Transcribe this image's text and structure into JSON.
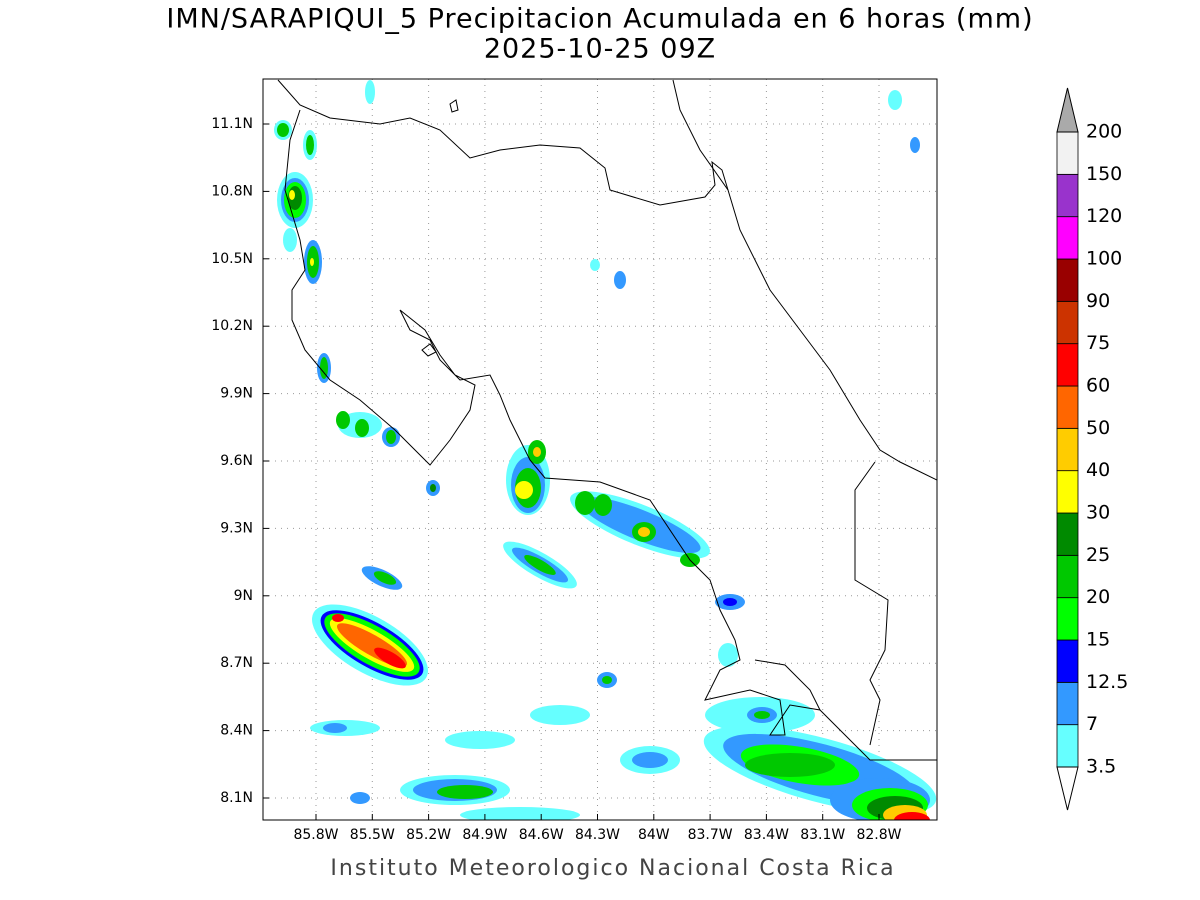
{
  "header": {
    "title": "IMN/SARAPIQUI_5 Precipitacion Acumulada en 6 horas (mm)",
    "subtitle": "2025-10-25 09Z"
  },
  "map": {
    "lon_labels": [
      "85.8W",
      "85.5W",
      "85.2W",
      "84.9W",
      "84.6W",
      "84.3W",
      "84W",
      "83.7W",
      "83.4W",
      "83.1W",
      "82.8W"
    ],
    "lat_labels": [
      "11.1N",
      "10.8N",
      "10.5N",
      "10.2N",
      "9.9N",
      "9.6N",
      "9.3N",
      "9N",
      "8.7N",
      "8.4N",
      "8.1N"
    ]
  },
  "colorbar": {
    "labels": [
      "3.5",
      "7",
      "12.5",
      "15",
      "20",
      "25",
      "30",
      "40",
      "50",
      "60",
      "75",
      "90",
      "100",
      "120",
      "150",
      "200"
    ],
    "colors": [
      "#66ffff",
      "#3399ff",
      "#0000ff",
      "#00ff00",
      "#00c800",
      "#008a00",
      "#ffff00",
      "#ffcc00",
      "#ff6600",
      "#ff0000",
      "#cc3300",
      "#990000",
      "#ff00ff",
      "#9933cc",
      "#f2f2f2"
    ],
    "over_color": "#aaaaaa",
    "under_color": "#ffffff"
  },
  "footer": {
    "text": "Instituto Meteorologico Nacional Costa Rica"
  }
}
